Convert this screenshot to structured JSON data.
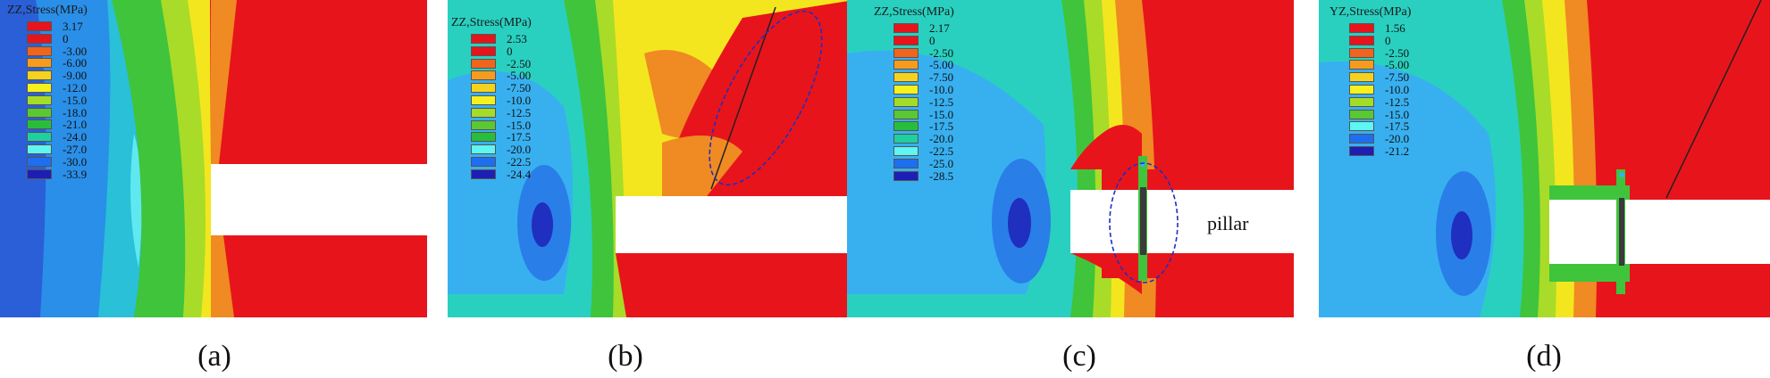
{
  "panels": [
    {
      "id": "a",
      "caption": "(a)",
      "legend_title": "ZZ,Stress(MPa)",
      "legend": [
        {
          "label": "3.17",
          "color": "#e8141b"
        },
        {
          "label": "0",
          "color": "#e8141b"
        },
        {
          "label": "-3.00",
          "color": "#f0641e"
        },
        {
          "label": "-6.00",
          "color": "#f59b1e"
        },
        {
          "label": "-9.00",
          "color": "#f5d21e"
        },
        {
          "label": "-12.0",
          "color": "#f5f01e"
        },
        {
          "label": "-15.0",
          "color": "#a5dc28"
        },
        {
          "label": "-18.0",
          "color": "#5ac832"
        },
        {
          "label": "-21.0",
          "color": "#28be3c"
        },
        {
          "label": "-24.0",
          "color": "#1ecfa0"
        },
        {
          "label": "-27.0",
          "color": "#5ff5f0"
        },
        {
          "label": "-30.0",
          "color": "#1e6ef0"
        },
        {
          "label": "-33.9",
          "color": "#1e1eb4"
        }
      ]
    },
    {
      "id": "b",
      "caption": "(b)",
      "legend_title": "ZZ,Stress(MPa)",
      "legend": [
        {
          "label": "2.53",
          "color": "#e8141b"
        },
        {
          "label": "0",
          "color": "#e8141b"
        },
        {
          "label": "-2.50",
          "color": "#f0641e"
        },
        {
          "label": "-5.00",
          "color": "#f59b1e"
        },
        {
          "label": "-7.50",
          "color": "#f5d21e"
        },
        {
          "label": "-10.0",
          "color": "#f5f01e"
        },
        {
          "label": "-12.5",
          "color": "#a5dc28"
        },
        {
          "label": "-15.0",
          "color": "#5ac832"
        },
        {
          "label": "-17.5",
          "color": "#28be3c"
        },
        {
          "label": "-20.0",
          "color": "#5ff5f0"
        },
        {
          "label": "-22.5",
          "color": "#1e6ef0"
        },
        {
          "label": "-24.4",
          "color": "#1e1eb4"
        }
      ]
    },
    {
      "id": "c",
      "caption": "(c)",
      "legend_title": "ZZ,Stress(MPa)",
      "legend": [
        {
          "label": "2.17",
          "color": "#e8141b"
        },
        {
          "label": "0",
          "color": "#e8141b"
        },
        {
          "label": "-2.50",
          "color": "#f0641e"
        },
        {
          "label": "-5.00",
          "color": "#f59b1e"
        },
        {
          "label": "-7.50",
          "color": "#f5d21e"
        },
        {
          "label": "-10.0",
          "color": "#f5f01e"
        },
        {
          "label": "-12.5",
          "color": "#a5dc28"
        },
        {
          "label": "-15.0",
          "color": "#5ac832"
        },
        {
          "label": "-17.5",
          "color": "#28be3c"
        },
        {
          "label": "-20.0",
          "color": "#1ecfa0"
        },
        {
          "label": "-22.5",
          "color": "#5ff5f0"
        },
        {
          "label": "-25.0",
          "color": "#1e6ef0"
        },
        {
          "label": "-28.5",
          "color": "#1e1eb4"
        }
      ],
      "annotation": "pillar"
    },
    {
      "id": "d",
      "caption": "(d)",
      "legend_title": "YZ,Stress(MPa)",
      "legend": [
        {
          "label": "1.56",
          "color": "#e8141b"
        },
        {
          "label": "0",
          "color": "#e8141b"
        },
        {
          "label": "-2.50",
          "color": "#f0641e"
        },
        {
          "label": "-5.00",
          "color": "#f59b1e"
        },
        {
          "label": "-7.50",
          "color": "#f5d21e"
        },
        {
          "label": "-10.0",
          "color": "#f5f01e"
        },
        {
          "label": "-12.5",
          "color": "#a5dc28"
        },
        {
          "label": "-15.0",
          "color": "#5ac832"
        },
        {
          "label": "-17.5",
          "color": "#5ff5f0"
        },
        {
          "label": "-20.0",
          "color": "#1e6ef0"
        },
        {
          "label": "-21.2",
          "color": "#1e1eb4"
        }
      ]
    }
  ],
  "colors": {
    "red": "#e8141b",
    "orange": "#f08a22",
    "yellow": "#f3e61e",
    "green": "#3fc43c",
    "cyan": "#29d4c8",
    "sky": "#38c8f0",
    "blue": "#2a7ee8",
    "navy": "#1f2fc0",
    "annotation": "#1f2fc0",
    "pillar": "#3a3a3a"
  }
}
